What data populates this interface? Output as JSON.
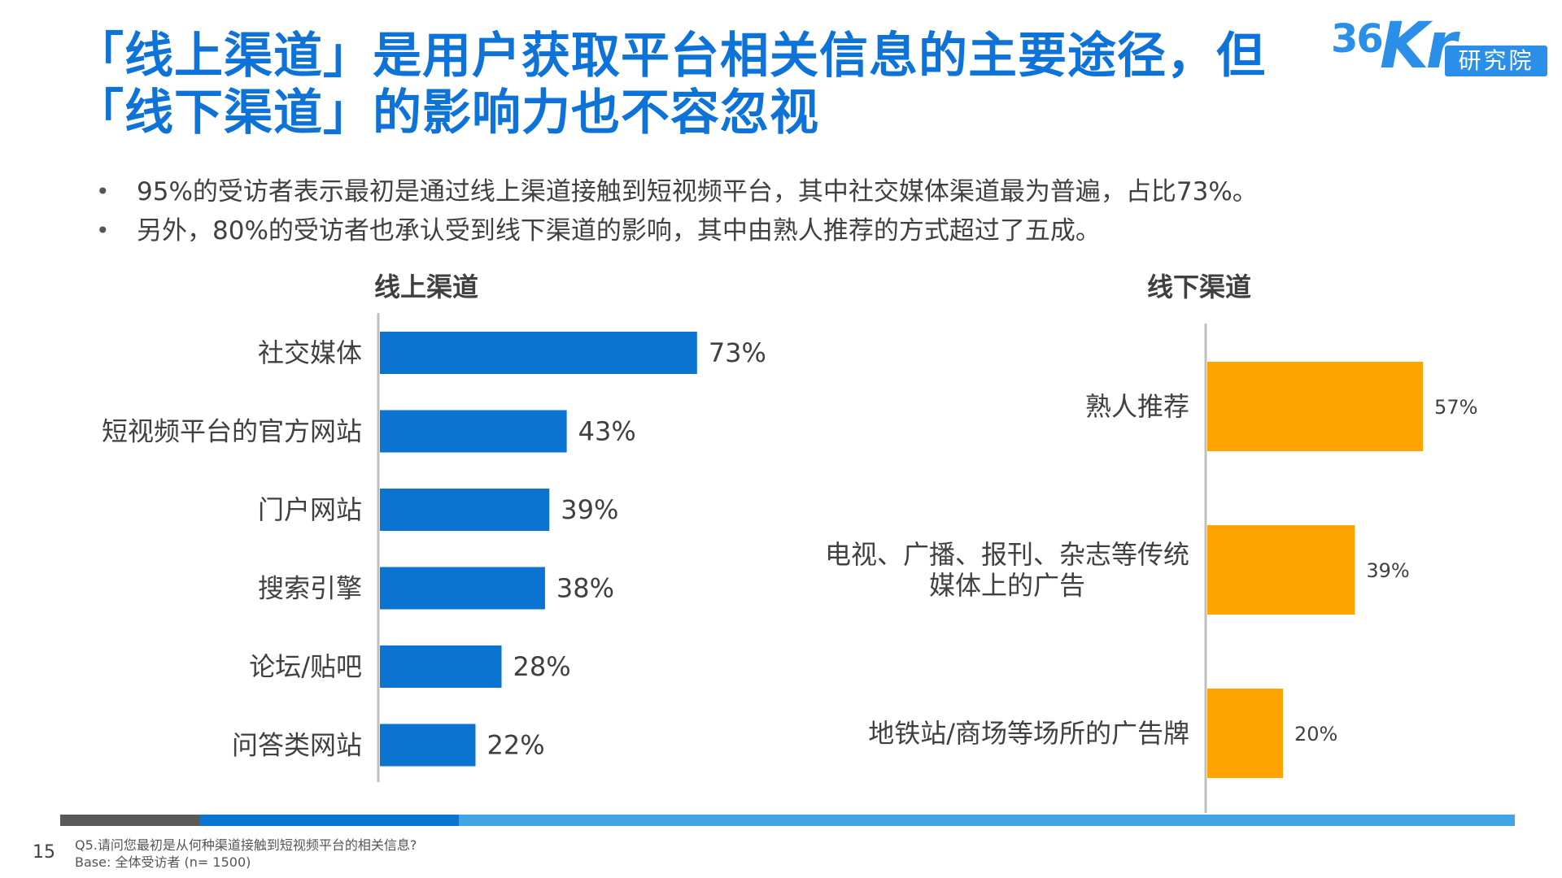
{
  "title": "「线上渠道」是用户获取平台相关信息的主要途径，但「线下渠道」的影响力也不容忽视",
  "logo": {
    "number": "36",
    "brand": "Kr",
    "tag": "研究院"
  },
  "bullets": [
    "95%的受访者表示最初是通过线上渠道接触到短视频平台，其中社交媒体渠道最为普遍，占比73%。",
    "另外，80%的受访者也承认受到线下渠道的影响，其中由熟人推荐的方式超过了五成。"
  ],
  "bullet_symbol": "•",
  "colors": {
    "title": "#0e73d8",
    "online_bar": "#0a74d0",
    "offline_bar": "#ffa300",
    "axis": "#bfbfbf"
  },
  "footer": {
    "page_number": "15",
    "question": "Q5.请问您最初是从何种渠道接触到短视频平台的相关信息?",
    "base": "Base: 全体受访者 (n= 1500)",
    "bar_colors": [
      "#595959",
      "#0a74d0",
      "#41a5e5"
    ]
  },
  "chart_data": [
    {
      "type": "bar",
      "orientation": "horizontal",
      "title": "线上渠道",
      "categories": [
        "社交媒体",
        "短视频平台的官方网站",
        "门户网站",
        "搜索引擎",
        "论坛/贴吧",
        "问答类网站"
      ],
      "values": [
        73,
        43,
        39,
        38,
        28,
        22
      ],
      "value_labels": [
        "73%",
        "43%",
        "39%",
        "38%",
        "28%",
        "22%"
      ],
      "unit": "%",
      "color": "#0a74d0"
    },
    {
      "type": "bar",
      "orientation": "horizontal",
      "title": "线下渠道",
      "categories": [
        [
          "熟人推荐"
        ],
        [
          "电视、广播、报刊、杂志等传统",
          "媒体上的广告"
        ],
        [
          "地铁站/商场等场所的广告牌"
        ]
      ],
      "values": [
        57,
        39,
        20
      ],
      "value_labels": [
        "57%",
        "39%",
        "20%"
      ],
      "unit": "%",
      "color": "#ffa300"
    }
  ]
}
